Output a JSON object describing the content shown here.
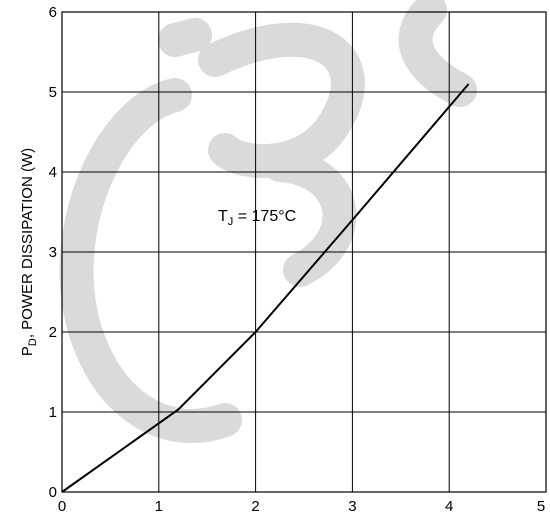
{
  "chart_data": {
    "type": "line",
    "ylabel_main": "P",
    "ylabel_sub": "D",
    "ylabel_rest": ", POWER DISSIPATION (W)",
    "xlabel": "",
    "xlim": [
      0,
      5
    ],
    "ylim": [
      0,
      6
    ],
    "xticks": [
      "0",
      "1",
      "2",
      "3",
      "4",
      "5"
    ],
    "yticks": [
      "0",
      "1",
      "2",
      "3",
      "4",
      "5",
      "6"
    ],
    "grid": true,
    "annotation": {
      "main": "T",
      "sub": "J",
      "rest": " = 175°C"
    },
    "series": [
      {
        "x": [
          0,
          1.2,
          2.0,
          3.0,
          4.2
        ],
        "y": [
          0,
          1.03,
          2.0,
          3.4,
          5.1
        ]
      }
    ]
  },
  "watermark": {
    "text": "CBS",
    "color": "#d8d8d8"
  }
}
